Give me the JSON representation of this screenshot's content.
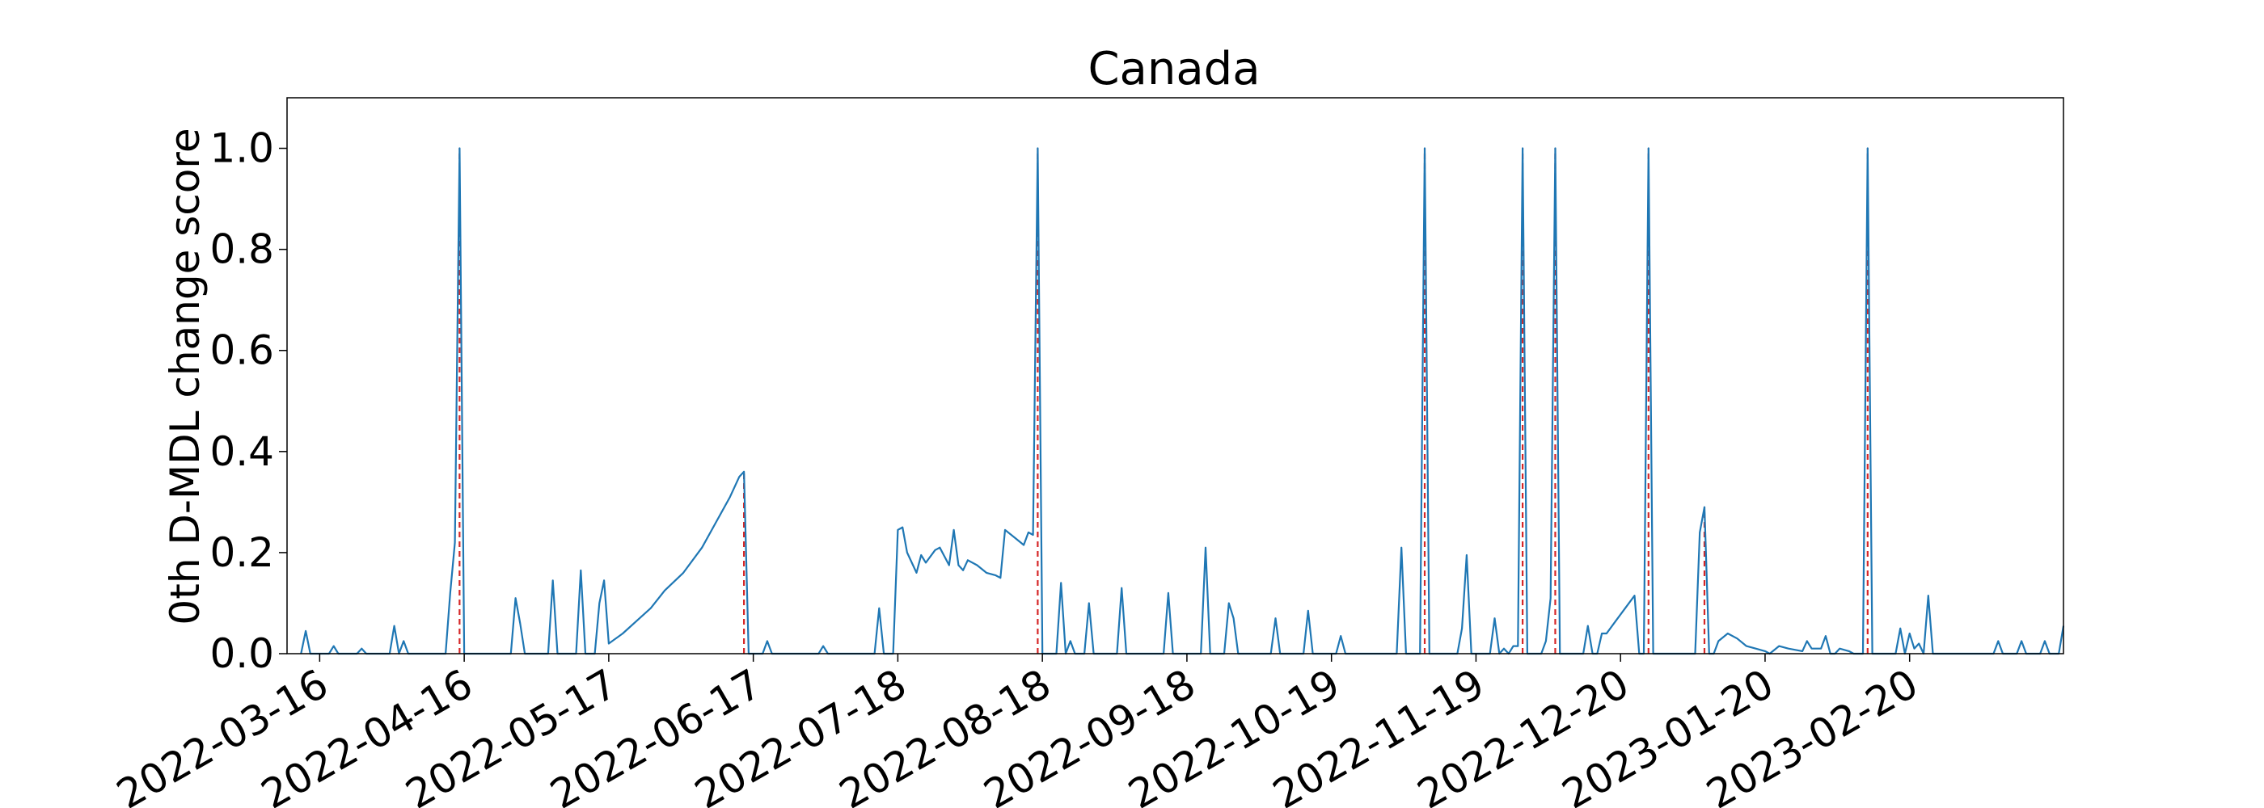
{
  "chart_data": {
    "type": "line",
    "title": "Canada",
    "xlabel": "",
    "ylabel": "0th D-MDL change score",
    "ylim": [
      0,
      1.1
    ],
    "xlim": [
      "2022-03-09",
      "2023-03-25"
    ],
    "grid": false,
    "colors": {
      "series": "#1f77b4",
      "change_points": "#d62728"
    },
    "x_ticks": [
      "2022-03-16",
      "2022-04-16",
      "2022-05-17",
      "2022-06-17",
      "2022-07-18",
      "2022-08-18",
      "2022-09-18",
      "2022-10-19",
      "2022-11-19",
      "2022-12-20",
      "2023-01-20",
      "2023-02-20"
    ],
    "y_ticks": [
      "0.0",
      "0.2",
      "0.4",
      "0.6",
      "0.8",
      "1.0"
    ],
    "series": [
      {
        "name": "",
        "points": [
          [
            "2022-03-12",
            0
          ],
          [
            "2022-03-13",
            0.045
          ],
          [
            "2022-03-14",
            0
          ],
          [
            "2022-03-18",
            0
          ],
          [
            "2022-03-19",
            0.015
          ],
          [
            "2022-03-20",
            0
          ],
          [
            "2022-03-24",
            0
          ],
          [
            "2022-03-25",
            0.01
          ],
          [
            "2022-03-26",
            0
          ],
          [
            "2022-03-31",
            0
          ],
          [
            "2022-04-01",
            0.055
          ],
          [
            "2022-04-02",
            0
          ],
          [
            "2022-04-03",
            0.025
          ],
          [
            "2022-04-04",
            0
          ],
          [
            "2022-04-12",
            0
          ],
          [
            "2022-04-13",
            0.12
          ],
          [
            "2022-04-14",
            0.22
          ],
          [
            "2022-04-15",
            1.0
          ],
          [
            "2022-04-16",
            0
          ],
          [
            "2022-04-26",
            0
          ],
          [
            "2022-04-27",
            0.11
          ],
          [
            "2022-04-28",
            0.06
          ],
          [
            "2022-04-29",
            0
          ],
          [
            "2022-05-04",
            0
          ],
          [
            "2022-05-05",
            0.145
          ],
          [
            "2022-05-06",
            0
          ],
          [
            "2022-05-10",
            0
          ],
          [
            "2022-05-11",
            0.165
          ],
          [
            "2022-05-12",
            0
          ],
          [
            "2022-05-14",
            0
          ],
          [
            "2022-05-15",
            0.1
          ],
          [
            "2022-05-16",
            0.145
          ],
          [
            "2022-05-17",
            0.02
          ],
          [
            "2022-05-20",
            0.04
          ],
          [
            "2022-05-23",
            0.065
          ],
          [
            "2022-05-26",
            0.09
          ],
          [
            "2022-05-29",
            0.125
          ],
          [
            "2022-06-02",
            0.16
          ],
          [
            "2022-06-06",
            0.21
          ],
          [
            "2022-06-09",
            0.26
          ],
          [
            "2022-06-12",
            0.31
          ],
          [
            "2022-06-14",
            0.35
          ],
          [
            "2022-06-15",
            0.36
          ],
          [
            "2022-06-16",
            0
          ],
          [
            "2022-06-19",
            0
          ],
          [
            "2022-06-20",
            0.025
          ],
          [
            "2022-06-21",
            0
          ],
          [
            "2022-07-01",
            0
          ],
          [
            "2022-07-02",
            0.015
          ],
          [
            "2022-07-03",
            0
          ],
          [
            "2022-07-13",
            0
          ],
          [
            "2022-07-14",
            0.09
          ],
          [
            "2022-07-15",
            0
          ],
          [
            "2022-07-17",
            0
          ],
          [
            "2022-07-18",
            0.245
          ],
          [
            "2022-07-19",
            0.25
          ],
          [
            "2022-07-20",
            0.2
          ],
          [
            "2022-07-22",
            0.16
          ],
          [
            "2022-07-23",
            0.195
          ],
          [
            "2022-07-24",
            0.18
          ],
          [
            "2022-07-26",
            0.205
          ],
          [
            "2022-07-27",
            0.21
          ],
          [
            "2022-07-29",
            0.175
          ],
          [
            "2022-07-30",
            0.245
          ],
          [
            "2022-07-31",
            0.175
          ],
          [
            "2022-08-01",
            0.165
          ],
          [
            "2022-08-02",
            0.185
          ],
          [
            "2022-08-04",
            0.175
          ],
          [
            "2022-08-06",
            0.16
          ],
          [
            "2022-08-08",
            0.155
          ],
          [
            "2022-08-09",
            0.15
          ],
          [
            "2022-08-10",
            0.245
          ],
          [
            "2022-08-12",
            0.23
          ],
          [
            "2022-08-14",
            0.215
          ],
          [
            "2022-08-15",
            0.24
          ],
          [
            "2022-08-16",
            0.235
          ],
          [
            "2022-08-17",
            1.0
          ],
          [
            "2022-08-18",
            0
          ],
          [
            "2022-08-21",
            0
          ],
          [
            "2022-08-22",
            0.14
          ],
          [
            "2022-08-23",
            0
          ],
          [
            "2022-08-24",
            0.025
          ],
          [
            "2022-08-25",
            0
          ],
          [
            "2022-08-27",
            0
          ],
          [
            "2022-08-28",
            0.1
          ],
          [
            "2022-08-29",
            0
          ],
          [
            "2022-09-03",
            0
          ],
          [
            "2022-09-04",
            0.13
          ],
          [
            "2022-09-05",
            0
          ],
          [
            "2022-09-13",
            0
          ],
          [
            "2022-09-14",
            0.12
          ],
          [
            "2022-09-15",
            0
          ],
          [
            "2022-09-21",
            0
          ],
          [
            "2022-09-22",
            0.21
          ],
          [
            "2022-09-23",
            0
          ],
          [
            "2022-09-26",
            0
          ],
          [
            "2022-09-27",
            0.1
          ],
          [
            "2022-09-28",
            0.07
          ],
          [
            "2022-09-29",
            0
          ],
          [
            "2022-10-06",
            0
          ],
          [
            "2022-10-07",
            0.07
          ],
          [
            "2022-10-08",
            0
          ],
          [
            "2022-10-13",
            0
          ],
          [
            "2022-10-14",
            0.085
          ],
          [
            "2022-10-15",
            0
          ],
          [
            "2022-10-20",
            0
          ],
          [
            "2022-10-21",
            0.035
          ],
          [
            "2022-10-22",
            0
          ],
          [
            "2022-11-02",
            0
          ],
          [
            "2022-11-03",
            0.21
          ],
          [
            "2022-11-04",
            0
          ],
          [
            "2022-11-07",
            0
          ],
          [
            "2022-11-08",
            1.0
          ],
          [
            "2022-11-09",
            0
          ],
          [
            "2022-11-15",
            0
          ],
          [
            "2022-11-16",
            0.05
          ],
          [
            "2022-11-17",
            0.195
          ],
          [
            "2022-11-18",
            0
          ],
          [
            "2022-11-22",
            0
          ],
          [
            "2022-11-23",
            0.07
          ],
          [
            "2022-11-24",
            0
          ],
          [
            "2022-11-25",
            0.01
          ],
          [
            "2022-11-26",
            0
          ],
          [
            "2022-11-27",
            0.015
          ],
          [
            "2022-11-28",
            0.015
          ],
          [
            "2022-11-29",
            1.0
          ],
          [
            "2022-11-30",
            0
          ],
          [
            "2022-12-03",
            0
          ],
          [
            "2022-12-04",
            0.025
          ],
          [
            "2022-12-05",
            0.11
          ],
          [
            "2022-12-06",
            1.0
          ],
          [
            "2022-12-07",
            0
          ],
          [
            "2022-12-12",
            0
          ],
          [
            "2022-12-13",
            0.055
          ],
          [
            "2022-12-14",
            0
          ],
          [
            "2022-12-15",
            0
          ],
          [
            "2022-12-16",
            0.04
          ],
          [
            "2022-12-17",
            0.04
          ],
          [
            "2022-12-19",
            0.065
          ],
          [
            "2022-12-21",
            0.09
          ],
          [
            "2022-12-23",
            0.115
          ],
          [
            "2022-12-24",
            0
          ],
          [
            "2022-12-25",
            0
          ],
          [
            "2022-12-26",
            1.0
          ],
          [
            "2022-12-27",
            0
          ],
          [
            "2023-01-05",
            0
          ],
          [
            "2023-01-06",
            0.24
          ],
          [
            "2023-01-07",
            0.29
          ],
          [
            "2023-01-08",
            0
          ],
          [
            "2023-01-09",
            0
          ],
          [
            "2023-01-10",
            0.025
          ],
          [
            "2023-01-12",
            0.04
          ],
          [
            "2023-01-14",
            0.03
          ],
          [
            "2023-01-16",
            0.015
          ],
          [
            "2023-01-18",
            0.01
          ],
          [
            "2023-01-20",
            0.005
          ],
          [
            "2023-01-21",
            0
          ],
          [
            "2023-01-23",
            0.015
          ],
          [
            "2023-01-25",
            0.01
          ],
          [
            "2023-01-28",
            0.005
          ],
          [
            "2023-01-29",
            0.025
          ],
          [
            "2023-01-30",
            0.01
          ],
          [
            "2023-02-01",
            0.01
          ],
          [
            "2023-02-02",
            0.035
          ],
          [
            "2023-02-03",
            0
          ],
          [
            "2023-02-04",
            0
          ],
          [
            "2023-02-05",
            0.01
          ],
          [
            "2023-02-07",
            0.005
          ],
          [
            "2023-02-08",
            0
          ],
          [
            "2023-02-10",
            0
          ],
          [
            "2023-02-11",
            1.0
          ],
          [
            "2023-02-12",
            0
          ],
          [
            "2023-02-17",
            0
          ],
          [
            "2023-02-18",
            0.05
          ],
          [
            "2023-02-19",
            0
          ],
          [
            "2023-02-20",
            0.04
          ],
          [
            "2023-02-21",
            0.01
          ],
          [
            "2023-02-22",
            0.02
          ],
          [
            "2023-02-23",
            0
          ],
          [
            "2023-02-24",
            0.115
          ],
          [
            "2023-02-25",
            0
          ],
          [
            "2023-03-10",
            0
          ],
          [
            "2023-03-11",
            0.025
          ],
          [
            "2023-03-12",
            0
          ],
          [
            "2023-03-15",
            0
          ],
          [
            "2023-03-16",
            0.025
          ],
          [
            "2023-03-17",
            0
          ],
          [
            "2023-03-20",
            0
          ],
          [
            "2023-03-21",
            0.025
          ],
          [
            "2023-03-22",
            0
          ],
          [
            "2023-03-24",
            0
          ],
          [
            "2023-03-25",
            0.055
          ]
        ]
      }
    ],
    "change_points": [
      [
        "2022-04-15",
        1.0
      ],
      [
        "2022-06-15",
        0.36
      ],
      [
        "2022-08-17",
        1.0
      ],
      [
        "2022-11-08",
        1.0
      ],
      [
        "2022-11-29",
        1.0
      ],
      [
        "2022-12-06",
        1.0
      ],
      [
        "2022-12-26",
        1.0
      ],
      [
        "2023-01-07",
        0.29
      ],
      [
        "2023-02-11",
        1.0
      ]
    ]
  }
}
